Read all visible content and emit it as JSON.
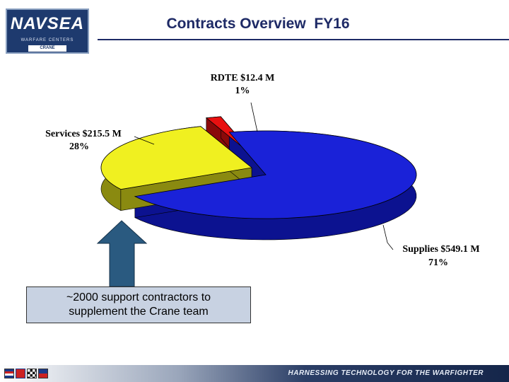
{
  "header": {
    "logo_text": "NAVSEA",
    "logo_subtext": "WARFARE CENTERS",
    "logo_base": "CRANE",
    "title": "Contracts Overview  FY16"
  },
  "chart_data": {
    "type": "pie",
    "title": "",
    "slices": [
      {
        "label": "Supplies",
        "value_text": "$549.1 M",
        "value": 549.1,
        "percent_text": "71%",
        "percent": 71,
        "color": "#1a22d8",
        "dark_color": "#0c1290"
      },
      {
        "label": "Services",
        "value_text": "$215.5 M",
        "value": 215.5,
        "percent_text": "28%",
        "percent": 28,
        "color": "#f0f020",
        "dark_color": "#8a8a10"
      },
      {
        "label": "RDTE",
        "value_text": "$12.4 M",
        "value": 12.4,
        "percent_text": "1%",
        "percent": 1,
        "color": "#e81010",
        "dark_color": "#8a0a0a"
      }
    ],
    "legend": "none",
    "style": "3d-exploded"
  },
  "labels": {
    "rdte_line1": "RDTE  $12.4 M",
    "rdte_line2": "1%",
    "services_line1": "Services $215.5 M",
    "services_line2": "28%",
    "supplies_line1": "Supplies  $549.1 M",
    "supplies_line2": "71%"
  },
  "callout": {
    "line1": "~2000 support contractors to",
    "line2": "supplement the Crane team"
  },
  "footer": {
    "tagline": "HARNESSING TECHNOLOGY FOR THE WARFIGHTER"
  },
  "colors": {
    "title": "#1e2a66",
    "arrow": "#2a5a80",
    "callout_bg": "#c8d2e2"
  }
}
